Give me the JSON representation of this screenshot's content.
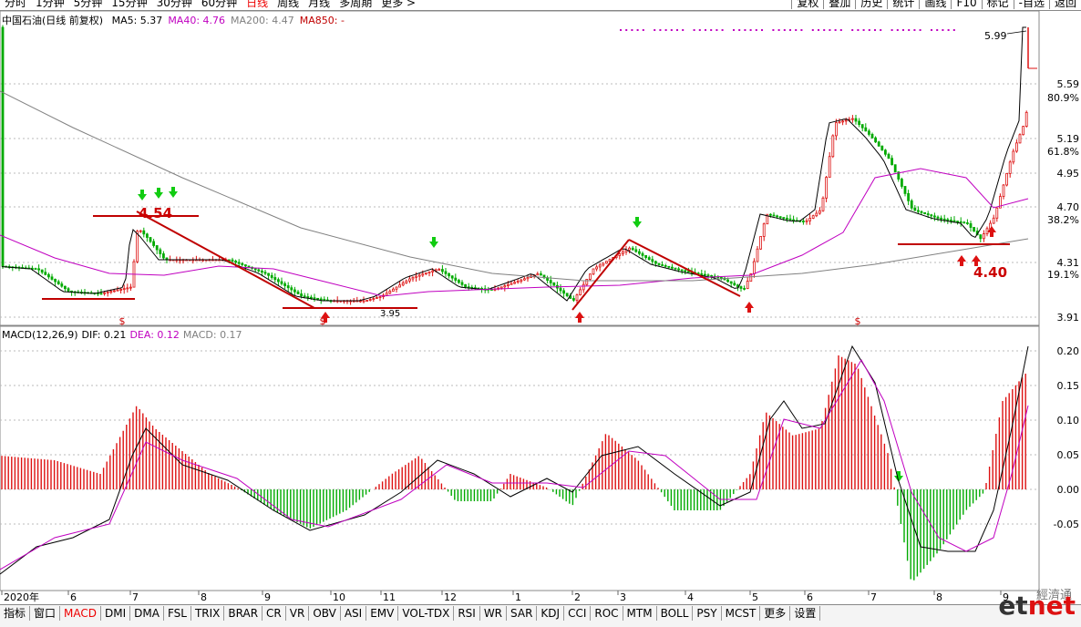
{
  "periods": [
    "分时",
    "1分钟",
    "5分钟",
    "15分钟",
    "30分钟",
    "60分钟",
    "日线",
    "周线",
    "月线",
    "多周期",
    "更多 >"
  ],
  "active_period": "日线",
  "right_tools": [
    "复权",
    "叠加",
    "历史",
    "统计",
    "画线",
    "F10",
    "标记",
    "-自选",
    "返回"
  ],
  "stock_title": "中国石油(日线 前复权)",
  "ma_legend": [
    {
      "label": "MA5: 5.37",
      "color": "#000000"
    },
    {
      "label": "MA40: 4.76",
      "color": "#c000c0"
    },
    {
      "label": "MA200: 4.47",
      "color": "#808080"
    },
    {
      "label": "MA850: -",
      "color": "#c00000"
    }
  ],
  "price_axis": {
    "ticks": [
      "5.59",
      "5.19",
      "4.95",
      "4.70",
      "4.31",
      "3.91"
    ],
    "pct": [
      "80.9%",
      "61.8%",
      "38.2%",
      "19.1%"
    ]
  },
  "annotations": {
    "high_label": "4.54",
    "low_label": "3.95",
    "low2_label": "4.40",
    "peak_label": "5.99",
    "s_mark": "$"
  },
  "macd_legend": [
    {
      "label": "MACD(12,26,9)",
      "color": "#000000"
    },
    {
      "label": "DIF: 0.21",
      "color": "#000000"
    },
    {
      "label": "DEA: 0.12",
      "color": "#c000c0"
    },
    {
      "label": "MACD: 0.17",
      "color": "#808080"
    }
  ],
  "macd_axis": [
    "0.20",
    "0.15",
    "0.10",
    "0.05",
    "0.00",
    "-0.05"
  ],
  "time_axis": [
    "2020年",
    "6",
    "7",
    "8",
    "9",
    "10",
    "11",
    "12",
    "1",
    "2",
    "3",
    "4",
    "5",
    "6",
    "7",
    "8",
    "9"
  ],
  "indicator_tabs": [
    "指标",
    "窗口",
    "MACD",
    "DMI",
    "DMA",
    "FSL",
    "TRIX",
    "BRAR",
    "CR",
    "VR",
    "OBV",
    "ASI",
    "EMV",
    "VOL-TDX",
    "RSI",
    "WR",
    "SAR",
    "KDJ",
    "CCI",
    "ROC",
    "MTM",
    "BOLL",
    "PSY",
    "MCST",
    "更多",
    "设置"
  ],
  "active_tab": "MACD",
  "watermark": {
    "cn": "經濟通",
    "en_prefix": "et",
    "en_suffix": "net"
  },
  "colors": {
    "up": "#d11",
    "down": "#0a0",
    "ma40": "#c000c0",
    "ma200": "#808080",
    "trend": "#c00000"
  },
  "chart_data": {
    "type": "candlestick",
    "x": [
      "2020-05",
      "2020-06",
      "2020-07",
      "2020-08",
      "2020-09",
      "2020-10",
      "2020-11",
      "2020-12",
      "2021-01",
      "2021-02",
      "2021-03",
      "2021-04",
      "2021-05",
      "2021-06",
      "2021-07",
      "2021-08",
      "2021-09"
    ],
    "close": [
      4.35,
      4.25,
      4.48,
      4.3,
      4.1,
      4.0,
      4.15,
      4.28,
      4.2,
      4.05,
      4.45,
      4.25,
      4.4,
      4.95,
      5.2,
      4.6,
      5.7
    ],
    "ma200_ylim": [
      3.91,
      5.99
    ],
    "macd": {
      "dif_last": 0.21,
      "dea_last": 0.12,
      "macd_last": 0.17,
      "ylim": [
        -0.12,
        0.22
      ]
    }
  }
}
